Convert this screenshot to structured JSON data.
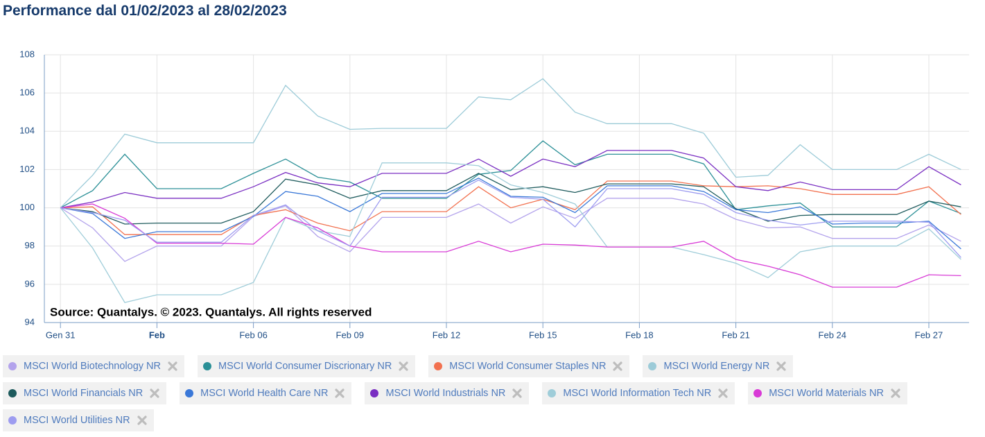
{
  "chart_data": {
    "type": "line",
    "title": "Performance dal 01/02/2023 al 28/02/2023",
    "source": "Source: Quantalys. © 2023. Quantalys. All rights reserved",
    "x": [
      "2023-01-31",
      "2023-02-01",
      "2023-02-02",
      "2023-02-03",
      "2023-02-04",
      "2023-02-05",
      "2023-02-06",
      "2023-02-07",
      "2023-02-08",
      "2023-02-09",
      "2023-02-10",
      "2023-02-11",
      "2023-02-12",
      "2023-02-13",
      "2023-02-14",
      "2023-02-15",
      "2023-02-16",
      "2023-02-17",
      "2023-02-18",
      "2023-02-19",
      "2023-02-20",
      "2023-02-21",
      "2023-02-22",
      "2023-02-23",
      "2023-02-24",
      "2023-02-25",
      "2023-02-26",
      "2023-02-27",
      "2023-02-28"
    ],
    "xlim": [
      "2023-01-30T12:00:00Z",
      "2023-02-28T06:00:00Z"
    ],
    "xticks": [
      {
        "value": "2023-01-31",
        "label": "Gen 31"
      },
      {
        "value": "2023-02-03",
        "label": "Feb"
      },
      {
        "value": "2023-02-06",
        "label": "Feb 06"
      },
      {
        "value": "2023-02-09",
        "label": "Feb 09"
      },
      {
        "value": "2023-02-12",
        "label": "Feb 12"
      },
      {
        "value": "2023-02-15",
        "label": "Feb 15"
      },
      {
        "value": "2023-02-18",
        "label": "Feb 18"
      },
      {
        "value": "2023-02-21",
        "label": "Feb 21"
      },
      {
        "value": "2023-02-24",
        "label": "Feb 24"
      },
      {
        "value": "2023-02-27",
        "label": "Feb 27"
      }
    ],
    "ylim": [
      94,
      108
    ],
    "yticks": [
      94,
      96,
      98,
      100,
      102,
      104,
      106,
      108
    ],
    "grid": true,
    "series": [
      {
        "name": "MSCI World Biotechnology NR",
        "color": "#b3a3ec",
        "values": [
          100,
          98.95,
          97.2,
          98.0,
          98.0,
          98.0,
          99.55,
          100.1,
          98.5,
          97.7,
          99.5,
          99.5,
          99.5,
          100.2,
          99.2,
          100.05,
          99.45,
          100.5,
          100.5,
          100.5,
          100.2,
          99.4,
          98.95,
          99.0,
          98.4,
          98.4,
          98.4,
          99.1,
          98.25
        ]
      },
      {
        "name": "MSCI World Consumer Discrionary NR",
        "color": "#2a8f96",
        "values": [
          100,
          100.9,
          102.8,
          101.0,
          101.0,
          101.0,
          101.8,
          102.55,
          101.6,
          101.35,
          100.5,
          100.5,
          100.5,
          101.75,
          101.95,
          103.5,
          102.25,
          102.8,
          102.8,
          102.8,
          102.3,
          99.9,
          100.1,
          100.25,
          99.0,
          99.0,
          99.0,
          100.35,
          99.7
        ]
      },
      {
        "name": "MSCI World Consumer Staples NR",
        "color": "#f2714f",
        "values": [
          100,
          100.05,
          98.6,
          98.6,
          98.6,
          98.6,
          99.6,
          99.9,
          99.2,
          98.8,
          99.8,
          99.8,
          99.8,
          101.1,
          100.0,
          100.45,
          99.9,
          101.4,
          101.4,
          101.4,
          101.15,
          101.1,
          101.15,
          101.0,
          100.7,
          100.7,
          100.7,
          101.1,
          99.65
        ]
      },
      {
        "name": "MSCI World Energy NR",
        "color": "#9ccbd8",
        "values": [
          100,
          101.7,
          103.85,
          103.4,
          103.4,
          103.4,
          103.4,
          106.4,
          104.8,
          104.1,
          104.15,
          104.15,
          104.15,
          105.8,
          105.65,
          106.75,
          105.0,
          104.4,
          104.4,
          104.4,
          103.9,
          101.6,
          101.7,
          103.3,
          102.0,
          102.0,
          102.0,
          102.8,
          102.0
        ]
      },
      {
        "name": "MSCI World Financials NR",
        "color": "#1d5a5c",
        "values": [
          100,
          99.8,
          99.15,
          99.2,
          99.2,
          99.2,
          99.8,
          101.5,
          101.2,
          100.5,
          100.9,
          100.9,
          100.9,
          101.8,
          100.95,
          101.1,
          100.8,
          101.25,
          101.25,
          101.25,
          101.1,
          99.95,
          99.3,
          99.6,
          99.65,
          99.65,
          99.65,
          100.35,
          100.05
        ]
      },
      {
        "name": "MSCI World Health Care NR",
        "color": "#3a78d8",
        "values": [
          100,
          99.7,
          98.4,
          98.75,
          98.75,
          98.75,
          99.55,
          100.85,
          100.6,
          99.8,
          100.75,
          100.75,
          100.75,
          101.55,
          100.6,
          100.55,
          99.75,
          101.15,
          101.15,
          101.15,
          100.85,
          99.9,
          99.75,
          100.05,
          99.15,
          99.2,
          99.2,
          99.3,
          97.85
        ]
      },
      {
        "name": "MSCI World Industrials NR",
        "color": "#7a2fc2",
        "values": [
          100,
          100.3,
          100.8,
          100.5,
          100.5,
          100.5,
          101.1,
          101.85,
          101.3,
          101.1,
          101.8,
          101.8,
          101.8,
          102.55,
          101.65,
          102.55,
          102.15,
          103.0,
          103.0,
          103.0,
          102.6,
          101.1,
          100.9,
          101.35,
          100.95,
          100.95,
          100.95,
          102.15,
          101.2
        ]
      },
      {
        "name": "MSCI World Information Tech NR",
        "color": "#9fcdd9",
        "values": [
          100,
          97.9,
          95.05,
          95.45,
          95.45,
          95.45,
          96.1,
          99.5,
          98.8,
          98.5,
          102.35,
          102.35,
          102.35,
          102.2,
          101.2,
          100.8,
          100.2,
          97.95,
          97.95,
          97.95,
          97.55,
          97.1,
          96.35,
          97.7,
          98.0,
          98.0,
          98.0,
          98.9,
          97.3
        ]
      },
      {
        "name": "MSCI World Materials NR",
        "color": "#d83ad6",
        "values": [
          100,
          100.2,
          99.45,
          98.15,
          98.15,
          98.15,
          98.1,
          99.5,
          98.95,
          98.0,
          97.7,
          97.7,
          97.7,
          98.25,
          97.7,
          98.1,
          98.05,
          97.95,
          97.95,
          97.95,
          98.25,
          97.3,
          96.95,
          96.5,
          95.85,
          95.85,
          95.85,
          96.5,
          96.45
        ]
      },
      {
        "name": "MSCI World Utilities NR",
        "color": "#9d9cf0",
        "values": [
          100,
          99.75,
          99.35,
          98.2,
          98.2,
          98.2,
          99.6,
          100.15,
          98.8,
          98.0,
          100.55,
          100.55,
          100.55,
          101.45,
          100.55,
          100.45,
          99.0,
          101.0,
          101.0,
          101.0,
          100.7,
          99.75,
          99.35,
          99.1,
          99.3,
          99.3,
          99.3,
          99.25,
          97.4
        ]
      }
    ]
  }
}
